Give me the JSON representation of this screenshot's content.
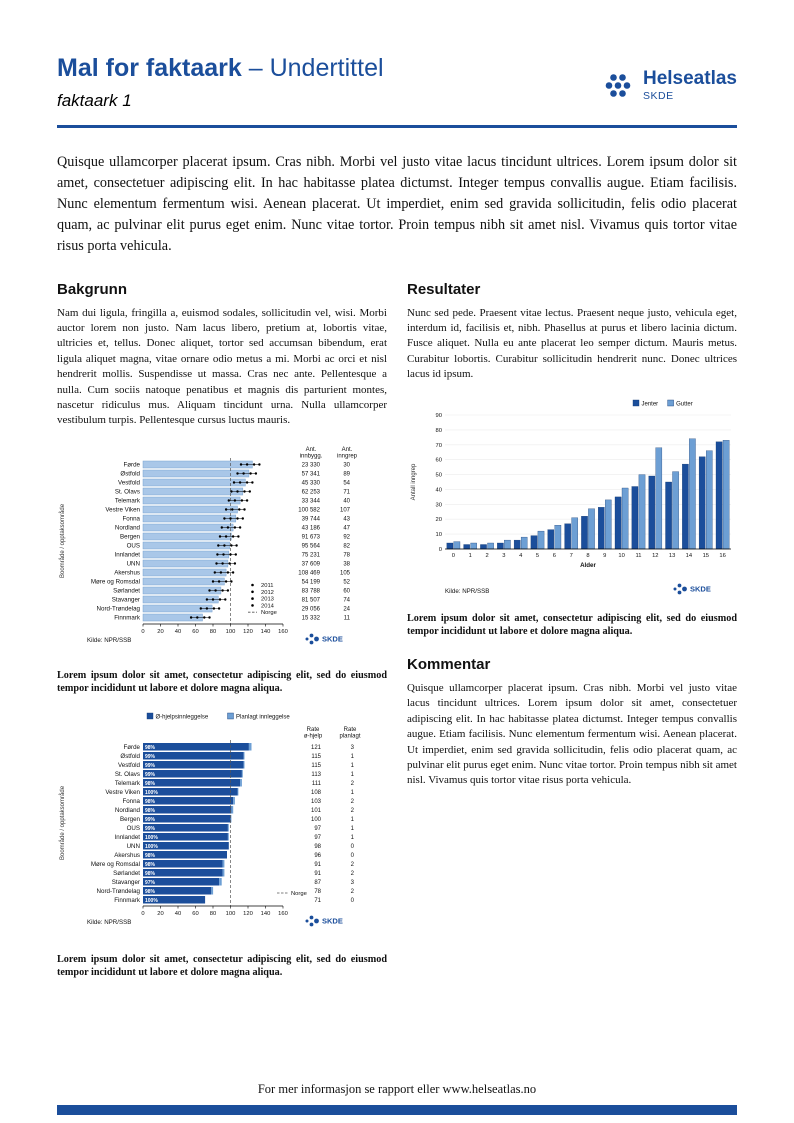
{
  "page": {
    "header": {
      "title_bold": "Mal for faktaark",
      "title_rest": " – Undertittel",
      "subtitle": "faktaark 1",
      "logo_name": "Helseatlas",
      "logo_sub": "SKDE"
    },
    "intro": "Quisque ullamcorper placerat ipsum. Cras nibh. Morbi vel justo vitae lacus tincidunt ultrices. Lorem ipsum dolor sit amet, consectetuer adipiscing elit. In hac habitasse platea dictumst. Integer tempus convallis augue. Etiam facilisis. Nunc elementum fermentum wisi. Aenean placerat. Ut imperdiet, enim sed gravida sollicitudin, felis odio placerat quam, ac pulvinar elit purus eget enim. Nunc vitae tortor. Proin tempus nibh sit amet nisl. Vivamus quis tortor vitae risus porta vehicula.",
    "sections": {
      "bakgrunn": {
        "heading": "Bakgrunn",
        "body": "Nam dui ligula, fringilla a, euismod sodales, sollicitudin vel, wisi. Morbi auctor lorem non justo. Nam lacus libero, pretium at, lobortis vitae, ultricies et, tellus. Donec aliquet, tortor sed accumsan bibendum, erat ligula aliquet magna, vitae ornare odio metus a mi. Morbi ac orci et nisl hendrerit mollis. Suspendisse ut massa. Cras nec ante. Pellentesque a nulla. Cum sociis natoque penatibus et magnis dis parturient montes, nascetur ridiculus mus. Aliquam tincidunt urna. Nulla ullamcorper vestibulum turpis. Pellentesque cursus luctus mauris."
      },
      "resultater": {
        "heading": "Resultater",
        "body": "Nunc sed pede. Praesent vitae lectus. Praesent neque justo, vehicula eget, interdum id, facilisis et, nibh. Phasellus at purus et libero lacinia dictum. Fusce aliquet. Nulla eu ante placerat leo semper dictum. Mauris metus. Curabitur lobortis. Curabitur sollicitudin hendrerit nunc. Donec ultrices lacus id ipsum."
      },
      "kommentar": {
        "heading": "Kommentar",
        "body": "Quisque ullamcorper placerat ipsum. Cras nibh. Morbi vel justo vitae lacus tincidunt ultrices. Lorem ipsum dolor sit amet, consectetuer adipiscing elit. In hac habitasse platea dictumst. Integer tempus convallis augue. Etiam facilisis. Nunc elementum fermentum wisi. Aenean placerat. Ut imperdiet, enim sed gravida sollicitudin, felis odio placerat quam, ac pulvinar elit purus eget enim. Nunc vitae tortor. Proin tempus nibh sit amet nisl. Vivamus quis tortor vitae risus porta vehicula."
      }
    },
    "captions": {
      "chart1": "Lorem ipsum dolor sit amet, consectetur adipiscing elit, sed do eiusmod tempor incididunt ut labore et dolore magna aliqua.",
      "chart2": "Lorem ipsum dolor sit amet, consectetur adipiscing elit, sed do eiusmod tempor incididunt ut labore et dolore magna aliqua.",
      "chart3": "Lorem ipsum dolor sit amet, consectetur adipiscing elit, sed do eiusmod tempor incididunt ut labore et dolore magna aliqua."
    },
    "footer": {
      "text": "For mer informasjon se rapport eller www.helseatlas.no"
    },
    "colors": {
      "brand_blue": "#1b4e9b",
      "bar_light": "#a9c7e8",
      "bar_mid": "#6d9fd4",
      "bar_dark": "#1b4e9b"
    }
  },
  "chart_data": [
    {
      "id": "chart1",
      "type": "bar",
      "orientation": "horizontal",
      "ylabel": "Boområde / opptaksområde",
      "col_headers": [
        "Ant. innbygg.",
        "Ant. inngrep"
      ],
      "xlim": [
        0,
        160
      ],
      "xticks": [
        0,
        20,
        40,
        60,
        80,
        100,
        120,
        140,
        160
      ],
      "reference_line": 100,
      "legend": [
        "2011",
        "2012",
        "2013",
        "2014",
        "Norge"
      ],
      "marker_offsets": [
        -13,
        -6,
        2,
        8
      ],
      "source": "Kilde: NPR/SSB",
      "rows": [
        {
          "name": "Førde",
          "pop": "23 330",
          "n": "30",
          "rate": 125
        },
        {
          "name": "Østfold",
          "pop": "57 341",
          "n": "89",
          "rate": 121
        },
        {
          "name": "Vestfold",
          "pop": "45 330",
          "n": "54",
          "rate": 117
        },
        {
          "name": "St. Olavs",
          "pop": "62 253",
          "n": "71",
          "rate": 114
        },
        {
          "name": "Telemark",
          "pop": "33 344",
          "n": "40",
          "rate": 111
        },
        {
          "name": "Vestre Viken",
          "pop": "100 582",
          "n": "107",
          "rate": 108
        },
        {
          "name": "Fonna",
          "pop": "39 744",
          "n": "43",
          "rate": 106
        },
        {
          "name": "Nordland",
          "pop": "43 186",
          "n": "47",
          "rate": 103
        },
        {
          "name": "Bergen",
          "pop": "91 673",
          "n": "92",
          "rate": 101
        },
        {
          "name": "OUS",
          "pop": "95 564",
          "n": "82",
          "rate": 99
        },
        {
          "name": "Innlandet",
          "pop": "75 231",
          "n": "78",
          "rate": 98
        },
        {
          "name": "UNN",
          "pop": "37 609",
          "n": "38",
          "rate": 97
        },
        {
          "name": "Akershus",
          "pop": "108 469",
          "n": "105",
          "rate": 95
        },
        {
          "name": "Møre og Romsdal",
          "pop": "54 199",
          "n": "52",
          "rate": 93
        },
        {
          "name": "Sørlandet",
          "pop": "83 788",
          "n": "60",
          "rate": 89
        },
        {
          "name": "Stavanger",
          "pop": "81 507",
          "n": "74",
          "rate": 86
        },
        {
          "name": "Nord-Trøndelag",
          "pop": "29 056",
          "n": "24",
          "rate": 79
        },
        {
          "name": "Finnmark",
          "pop": "15 332",
          "n": "11",
          "rate": 68
        }
      ]
    },
    {
      "id": "chart2",
      "type": "bar",
      "orientation": "vertical",
      "categories": [
        0,
        1,
        2,
        3,
        4,
        5,
        6,
        7,
        8,
        9,
        10,
        11,
        12,
        13,
        14,
        15,
        16
      ],
      "series": [
        {
          "name": "Jenter",
          "color": "#1b4e9b",
          "values": [
            4,
            3,
            3,
            4,
            6,
            9,
            13,
            17,
            22,
            28,
            35,
            42,
            49,
            45,
            57,
            62,
            72
          ]
        },
        {
          "name": "Gutter",
          "color": "#6d9fd4",
          "values": [
            5,
            4,
            4,
            6,
            8,
            12,
            16,
            21,
            27,
            33,
            41,
            50,
            68,
            52,
            74,
            66,
            73
          ]
        }
      ],
      "xlabel": "Alder",
      "ylabel": "Antall inngrep",
      "ylim": [
        0,
        90
      ],
      "yticks": [
        0,
        10,
        20,
        30,
        40,
        50,
        60,
        70,
        80,
        90
      ],
      "legend_position": "top-right",
      "grid": true,
      "source": "Kilde: NPR/SSB"
    },
    {
      "id": "chart3",
      "type": "bar",
      "orientation": "horizontal",
      "stacked": true,
      "ylabel": "Boområde / opptaksområde",
      "legend": [
        {
          "name": "Ø-hjelpsinnleggelse",
          "color": "#1b4e9b"
        },
        {
          "name": "Planlagt innleggelse",
          "color": "#6d9fd4"
        }
      ],
      "col_headers": [
        "Rate ø-hjelp",
        "Rate planlagt"
      ],
      "xlim": [
        0,
        160
      ],
      "xticks": [
        0,
        20,
        40,
        60,
        80,
        100,
        120,
        140,
        160
      ],
      "reference_line": 100,
      "reference_label": "Norge",
      "source": "Kilde: NPR/SSB",
      "rows": [
        {
          "name": "Førde",
          "pct": "98%",
          "ohjelp": 121,
          "planlagt": 3
        },
        {
          "name": "Østfold",
          "pct": "99%",
          "ohjelp": 115,
          "planlagt": 1
        },
        {
          "name": "Vestfold",
          "pct": "99%",
          "ohjelp": 115,
          "planlagt": 1
        },
        {
          "name": "St. Olavs",
          "pct": "99%",
          "ohjelp": 113,
          "planlagt": 1
        },
        {
          "name": "Telemark",
          "pct": "98%",
          "ohjelp": 111,
          "planlagt": 2
        },
        {
          "name": "Vestre Viken",
          "pct": "100%",
          "ohjelp": 108,
          "planlagt": 1
        },
        {
          "name": "Fonna",
          "pct": "98%",
          "ohjelp": 103,
          "planlagt": 2
        },
        {
          "name": "Nordland",
          "pct": "98%",
          "ohjelp": 101,
          "planlagt": 2
        },
        {
          "name": "Bergen",
          "pct": "99%",
          "ohjelp": 100,
          "planlagt": 1
        },
        {
          "name": "OUS",
          "pct": "99%",
          "ohjelp": 97,
          "planlagt": 1
        },
        {
          "name": "Innlandet",
          "pct": "100%",
          "ohjelp": 97,
          "planlagt": 1
        },
        {
          "name": "UNN",
          "pct": "100%",
          "ohjelp": 98,
          "planlagt": 0
        },
        {
          "name": "Akershus",
          "pct": "98%",
          "ohjelp": 96,
          "planlagt": 0
        },
        {
          "name": "Møre og Romsdal",
          "pct": "98%",
          "ohjelp": 91,
          "planlagt": 2
        },
        {
          "name": "Sørlandet",
          "pct": "98%",
          "ohjelp": 91,
          "planlagt": 2
        },
        {
          "name": "Stavanger",
          "pct": "97%",
          "ohjelp": 87,
          "planlagt": 3
        },
        {
          "name": "Nord-Trøndelag",
          "pct": "98%",
          "ohjelp": 78,
          "planlagt": 2
        },
        {
          "name": "Finnmark",
          "pct": "100%",
          "ohjelp": 71,
          "planlagt": 0
        }
      ]
    }
  ]
}
